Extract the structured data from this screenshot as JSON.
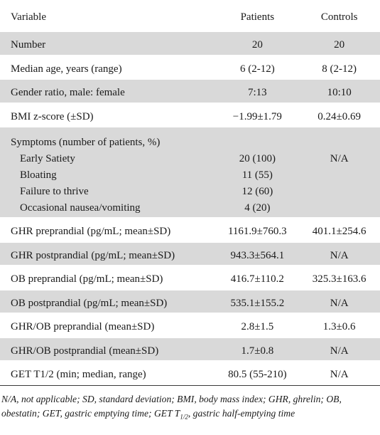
{
  "table": {
    "headers": [
      "Variable",
      "Patients",
      "Controls"
    ],
    "rows": [
      {
        "variable": "Number",
        "patients": "20",
        "controls": "20"
      },
      {
        "variable": "Median age, years (range)",
        "patients": "6 (2-12)",
        "controls": "8 (2-12)"
      },
      {
        "variable": "Gender ratio, male: female",
        "patients": "7:13",
        "controls": "10:10"
      },
      {
        "variable": "BMI z-score (±SD)",
        "patients": "−1.99±1.79",
        "controls": "0.24±0.69"
      },
      {
        "variable": "Symptoms (number of patients, %)",
        "patients": "",
        "controls": "",
        "sub": [
          {
            "variable": "Early Satiety",
            "patients": "20 (100)",
            "controls": "N/A"
          },
          {
            "variable": "Bloating",
            "patients": "11 (55)",
            "controls": ""
          },
          {
            "variable": "Failure to thrive",
            "patients": "12 (60)",
            "controls": ""
          },
          {
            "variable": "Occasional nausea/vomiting",
            "patients": "4 (20)",
            "controls": ""
          }
        ]
      },
      {
        "variable": "GHR preprandial (pg/mL; mean±SD)",
        "patients": "1161.9±760.3",
        "controls": "401.1±254.6"
      },
      {
        "variable": "GHR postprandial (pg/mL; mean±SD)",
        "patients": "943.3±564.1",
        "controls": "N/A"
      },
      {
        "variable": "OB preprandial (pg/mL; mean±SD)",
        "patients": "416.7±110.2",
        "controls": "325.3±163.6"
      },
      {
        "variable": "OB postprandial (pg/mL; mean±SD)",
        "patients": "535.1±155.2",
        "controls": "N/A"
      },
      {
        "variable": "GHR/OB preprandial (mean±SD)",
        "patients": "2.8±1.5",
        "controls": "1.3±0.6"
      },
      {
        "variable": "GHR/OB postprandial (mean±SD)",
        "patients": "1.7±0.8",
        "controls": "N/A"
      },
      {
        "variable": "GET T1/2 (min; median, range)",
        "patients": "80.5 (55-210)",
        "controls": "N/A"
      }
    ]
  },
  "footnote": {
    "part1": "N/A, not applicable; SD, standard deviation; BMI, body mass index; GHR, ghrelin; OB, obestatin; GET, gastric emptying time; GET T",
    "sub": "1/2",
    "part2": ", gastric half-emptying time"
  }
}
